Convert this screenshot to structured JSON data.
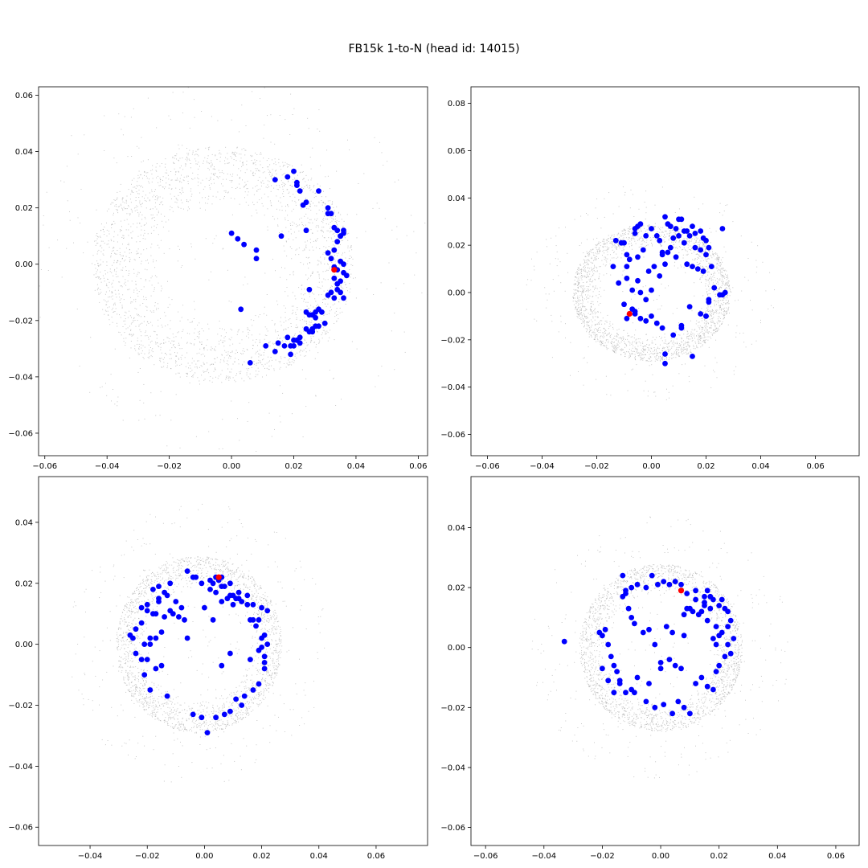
{
  "figure": {
    "title": "FB15k 1-to-N (head id: 14015)"
  },
  "colors": {
    "background_points": "#9a9a9a",
    "tail_points": "#0000ff",
    "head_point": "#ff0000"
  },
  "chart_data": [
    {
      "type": "scatter",
      "title": "",
      "xlabel": "",
      "ylabel": "",
      "xlim": [
        -0.062,
        0.063
      ],
      "ylim": [
        -0.068,
        0.063
      ],
      "xticks": [
        -0.06,
        -0.04,
        -0.02,
        0.0,
        0.02,
        0.04,
        0.06
      ],
      "yticks": [
        -0.06,
        -0.04,
        -0.02,
        0.0,
        0.02,
        0.04,
        0.06
      ],
      "xtick_labels": [
        "−0.06",
        "−0.04",
        "−0.02",
        "0.00",
        "0.02",
        "0.04",
        "0.06"
      ],
      "ytick_labels": [
        "−0.06",
        "−0.04",
        "−0.02",
        "0.00",
        "0.02",
        "0.04",
        "0.06"
      ],
      "grid": false,
      "background_cloud": {
        "shape": "ring",
        "center": [
          -0.003,
          0.0
        ],
        "inner_radius": 0.02,
        "outer_radius": 0.042,
        "count": 2600
      },
      "head": {
        "x": 0.033,
        "y": -0.002
      },
      "series": [
        {
          "x": [
            0.0,
            0.002,
            0.004,
            0.008,
            0.014,
            0.016,
            0.018,
            0.02,
            0.021,
            0.022,
            0.021,
            0.024,
            0.023,
            0.024,
            0.028,
            0.031,
            0.031,
            0.032,
            0.033,
            0.034,
            0.035,
            0.036,
            0.034,
            0.033,
            0.036,
            0.035,
            0.031,
            0.032,
            0.035,
            0.036,
            0.033,
            0.034,
            0.036,
            0.037,
            0.033,
            0.034,
            0.035,
            0.034,
            0.032,
            0.035,
            0.036,
            0.033,
            0.031,
            0.029,
            0.026,
            0.024,
            0.025,
            0.027,
            0.028,
            0.027,
            0.03,
            0.028,
            0.026,
            0.027,
            0.026,
            0.025,
            0.024,
            0.022,
            0.021,
            0.02,
            0.02,
            0.017,
            0.019,
            0.018,
            0.015,
            0.014,
            0.022,
            0.019,
            0.011,
            0.006,
            0.025,
            0.003,
            0.008
          ],
          "y": [
            0.011,
            0.009,
            0.007,
            0.002,
            0.03,
            0.01,
            0.031,
            0.033,
            0.028,
            0.026,
            0.029,
            0.022,
            0.021,
            0.012,
            0.026,
            0.02,
            0.018,
            0.018,
            0.013,
            0.012,
            0.01,
            0.011,
            0.008,
            0.005,
            0.012,
            0.01,
            0.004,
            0.002,
            0.001,
            0.0,
            -0.001,
            -0.002,
            -0.003,
            -0.004,
            -0.005,
            -0.007,
            -0.006,
            -0.009,
            -0.01,
            -0.01,
            -0.012,
            -0.012,
            -0.011,
            -0.017,
            -0.018,
            -0.017,
            -0.018,
            -0.017,
            -0.016,
            -0.019,
            -0.021,
            -0.022,
            -0.023,
            -0.022,
            -0.024,
            -0.024,
            -0.023,
            -0.026,
            -0.027,
            -0.027,
            -0.029,
            -0.029,
            -0.029,
            -0.026,
            -0.028,
            -0.031,
            -0.028,
            -0.032,
            -0.029,
            -0.035,
            -0.009,
            -0.016,
            0.005
          ]
        }
      ]
    },
    {
      "type": "scatter",
      "title": "",
      "xlabel": "",
      "ylabel": "",
      "xlim": [
        -0.066,
        0.076
      ],
      "ylim": [
        -0.069,
        0.087
      ],
      "xticks": [
        -0.06,
        -0.04,
        -0.02,
        0.0,
        0.02,
        0.04,
        0.06
      ],
      "yticks": [
        -0.06,
        -0.04,
        -0.02,
        0.0,
        0.02,
        0.04,
        0.06,
        0.08
      ],
      "xtick_labels": [
        "−0.06",
        "−0.04",
        "−0.02",
        "0.00",
        "0.02",
        "0.04",
        "0.06"
      ],
      "ytick_labels": [
        "−0.06",
        "−0.04",
        "−0.02",
        "0.00",
        "0.02",
        "0.04",
        "0.06",
        "0.08"
      ],
      "grid": false,
      "background_cloud": {
        "shape": "ring",
        "center": [
          0.0,
          0.0
        ],
        "inner_radius": 0.018,
        "outer_radius": 0.029,
        "count": 2400
      },
      "head": {
        "x": -0.008,
        "y": -0.009
      },
      "series": [
        {
          "x": [
            -0.013,
            -0.011,
            -0.01,
            -0.009,
            -0.006,
            -0.006,
            -0.005,
            -0.004,
            -0.002,
            0.0,
            0.003,
            0.005,
            0.006,
            0.007,
            0.009,
            0.01,
            0.011,
            0.012,
            0.013,
            0.015,
            0.016,
            0.018,
            0.019,
            0.02,
            0.021,
            0.026,
            -0.009,
            -0.008,
            -0.005,
            -0.003,
            -0.001,
            0.001,
            0.002,
            0.004,
            0.006,
            0.008,
            0.01,
            0.012,
            0.014,
            0.016,
            0.018,
            0.02,
            0.022,
            -0.014,
            -0.012,
            -0.009,
            -0.007,
            -0.005,
            -0.004,
            -0.002,
            0.0,
            0.003,
            0.004,
            0.005,
            0.007,
            0.009,
            0.013,
            0.015,
            0.017,
            0.019,
            0.021,
            0.023,
            0.025,
            -0.007,
            -0.006,
            -0.004,
            -0.002,
            0.0,
            0.005,
            0.008,
            0.011,
            0.014,
            0.021,
            0.02,
            0.026,
            0.027,
            0.018,
            0.02,
            -0.009,
            -0.006,
            0.002,
            0.004,
            0.005,
            0.015,
            0.011,
            -0.01
          ],
          "y": [
            0.022,
            0.021,
            0.021,
            0.016,
            0.025,
            0.027,
            0.028,
            0.029,
            0.024,
            0.027,
            0.022,
            0.032,
            0.029,
            0.028,
            0.027,
            0.031,
            0.031,
            0.026,
            0.026,
            0.028,
            0.025,
            0.026,
            0.023,
            0.022,
            0.019,
            0.027,
            0.011,
            0.014,
            0.015,
            0.018,
            0.009,
            0.011,
            0.024,
            0.017,
            0.017,
            0.023,
            0.024,
            0.021,
            0.024,
            0.019,
            0.018,
            0.016,
            0.011,
            0.011,
            0.004,
            0.006,
            0.001,
            0.005,
            0.0,
            -0.003,
            0.001,
            0.007,
            0.016,
            0.012,
            0.019,
            0.015,
            0.012,
            0.011,
            0.01,
            0.009,
            -0.004,
            0.002,
            -0.001,
            -0.007,
            -0.008,
            -0.011,
            -0.012,
            -0.01,
            -0.026,
            -0.018,
            -0.015,
            -0.006,
            -0.003,
            -0.01,
            -0.001,
            0.0,
            -0.009,
            -0.01,
            -0.011,
            -0.009,
            -0.013,
            -0.015,
            -0.03,
            -0.027,
            -0.014,
            -0.005
          ]
        }
      ]
    },
    {
      "type": "scatter",
      "title": "",
      "xlabel": "",
      "ylabel": "",
      "xlim": [
        -0.058,
        0.078
      ],
      "ylim": [
        -0.066,
        0.055
      ],
      "xticks": [
        -0.04,
        -0.02,
        0.0,
        0.02,
        0.04,
        0.06
      ],
      "yticks": [
        -0.06,
        -0.04,
        -0.02,
        0.0,
        0.02,
        0.04
      ],
      "xtick_labels": [
        "−0.04",
        "−0.02",
        "0.00",
        "0.02",
        "0.04",
        "0.06"
      ],
      "ytick_labels": [
        "−0.06",
        "−0.04",
        "−0.02",
        "0.00",
        "0.02",
        "0.04"
      ],
      "grid": false,
      "background_cloud": {
        "shape": "ring",
        "center": [
          -0.002,
          0.0
        ],
        "inner_radius": 0.018,
        "outer_radius": 0.029,
        "count": 2300
      },
      "head": {
        "x": 0.005,
        "y": 0.022
      },
      "series": [
        {
          "x": [
            -0.006,
            -0.003,
            -0.001,
            0.002,
            0.004,
            0.006,
            0.009,
            0.012,
            0.015,
            0.017,
            0.02,
            0.022,
            -0.014,
            -0.016,
            -0.018,
            -0.02,
            -0.022,
            -0.024,
            -0.025,
            -0.026,
            -0.024,
            -0.022,
            -0.021,
            -0.019,
            -0.017,
            -0.015,
            -0.013,
            -0.011,
            -0.009,
            -0.007,
            -0.004,
            -0.001,
            0.001,
            0.004,
            0.007,
            0.009,
            0.011,
            0.014,
            0.017,
            0.019,
            0.021,
            0.022,
            0.021,
            0.02,
            0.018,
            0.016,
            0.012,
            0.01,
            -0.016,
            -0.018,
            -0.02,
            -0.012,
            -0.01,
            -0.008,
            -0.006,
            -0.004,
            0.002,
            0.004,
            0.006,
            0.008,
            0.01,
            0.013,
            0.015,
            0.017,
            0.019,
            0.02,
            -0.02,
            -0.019,
            -0.017,
            -0.015,
            -0.014,
            -0.012,
            0.0,
            0.003,
            0.006,
            0.009,
            0.013,
            0.016,
            -0.022,
            -0.021,
            -0.019,
            -0.017,
            -0.016,
            -0.013,
            0.011,
            0.009,
            0.007,
            0.005,
            0.006,
            0.003,
            0.019,
            0.021,
            0.021
          ],
          "y": [
            0.024,
            0.022,
            0.02,
            0.021,
            0.022,
            0.019,
            0.02,
            0.017,
            0.016,
            0.013,
            0.012,
            0.011,
            0.017,
            0.014,
            0.01,
            0.013,
            0.012,
            0.005,
            0.002,
            0.003,
            -0.003,
            -0.005,
            -0.01,
            -0.015,
            -0.008,
            -0.007,
            -0.017,
            0.01,
            0.009,
            0.008,
            -0.023,
            -0.024,
            -0.029,
            -0.024,
            -0.023,
            -0.022,
            -0.018,
            -0.017,
            -0.015,
            -0.013,
            -0.006,
            0.0,
            0.003,
            -0.001,
            0.006,
            0.008,
            0.015,
            0.013,
            0.019,
            0.018,
            0.011,
            0.02,
            0.014,
            0.012,
            0.002,
            0.022,
            0.018,
            0.017,
            0.014,
            0.015,
            0.016,
            0.014,
            0.013,
            0.008,
            0.008,
            0.002,
            -0.005,
            0.0,
            0.002,
            0.004,
            0.009,
            0.011,
            0.012,
            0.008,
            -0.007,
            -0.003,
            -0.02,
            -0.005,
            0.007,
            0.0,
            0.002,
            0.01,
            0.015,
            0.016,
            0.015,
            0.016,
            0.019,
            0.021,
            0.022,
            0.02,
            -0.002,
            -0.004,
            -0.008
          ]
        }
      ]
    },
    {
      "type": "scatter",
      "title": "",
      "xlabel": "",
      "ylabel": "",
      "xlim": [
        -0.065,
        0.068
      ],
      "ylim": [
        -0.066,
        0.057
      ],
      "xticks": [
        -0.06,
        -0.04,
        -0.02,
        0.0,
        0.02,
        0.04,
        0.06
      ],
      "yticks": [
        -0.06,
        -0.04,
        -0.02,
        0.0,
        0.02,
        0.04
      ],
      "xtick_labels": [
        "−0.06",
        "−0.04",
        "−0.02",
        "0.00",
        "0.02",
        "0.04",
        "0.06"
      ],
      "ytick_labels": [
        "−0.06",
        "−0.04",
        "−0.02",
        "0.00",
        "0.02",
        "0.04"
      ],
      "grid": false,
      "background_cloud": {
        "shape": "ring",
        "center": [
          0.0,
          0.0
        ],
        "inner_radius": 0.018,
        "outer_radius": 0.028,
        "count": 2300
      },
      "head": {
        "x": 0.007,
        "y": 0.019
      },
      "series": [
        {
          "x": [
            -0.013,
            -0.012,
            -0.01,
            -0.008,
            -0.005,
            -0.003,
            -0.001,
            0.001,
            0.003,
            0.005,
            0.007,
            0.009,
            0.012,
            0.015,
            0.016,
            0.018,
            0.02,
            0.022,
            0.023,
            -0.021,
            -0.02,
            -0.019,
            -0.018,
            -0.017,
            -0.016,
            -0.015,
            -0.014,
            -0.012,
            -0.01,
            -0.008,
            -0.005,
            -0.002,
            0.001,
            0.004,
            0.006,
            0.008,
            0.01,
            0.012,
            0.014,
            0.016,
            0.018,
            0.019,
            0.02,
            0.022,
            0.024,
            0.025,
            0.024,
            0.023,
            0.021,
            0.02,
            0.019,
            0.018,
            0.017,
            0.015,
            0.016,
            0.014,
            0.012,
            0.01,
            0.008,
            -0.012,
            -0.013,
            -0.011,
            -0.01,
            -0.009,
            -0.006,
            -0.004,
            -0.002,
            0.0,
            0.003,
            0.005,
            0.007,
            0.009,
            0.011,
            0.013,
            0.015,
            0.017,
            0.019,
            0.021,
            0.023,
            -0.033,
            -0.02,
            -0.018,
            -0.016,
            -0.014,
            0.002,
            0.004,
            0.008,
            -0.009,
            -0.004,
            0.0
          ],
          "y": [
            0.024,
            0.019,
            0.02,
            0.021,
            0.02,
            0.024,
            0.021,
            0.022,
            0.021,
            0.022,
            0.021,
            0.018,
            0.019,
            0.017,
            0.019,
            0.016,
            0.014,
            0.013,
            0.012,
            0.005,
            0.004,
            0.006,
            0.001,
            -0.003,
            -0.006,
            -0.008,
            -0.011,
            -0.015,
            -0.014,
            -0.01,
            -0.018,
            -0.02,
            -0.019,
            -0.022,
            -0.018,
            -0.02,
            -0.022,
            -0.012,
            -0.01,
            -0.013,
            -0.014,
            -0.008,
            -0.006,
            -0.003,
            -0.002,
            0.003,
            0.009,
            0.007,
            0.005,
            0.004,
            0.001,
            0.003,
            0.013,
            0.014,
            0.009,
            0.012,
            0.016,
            0.013,
            0.011,
            0.018,
            0.017,
            0.013,
            0.01,
            0.008,
            0.005,
            0.006,
            0.001,
            -0.007,
            -0.004,
            -0.006,
            -0.007,
            0.013,
            0.012,
            0.011,
            0.015,
            0.017,
            0.007,
            0.016,
            0.001,
            0.002,
            -0.007,
            -0.011,
            -0.015,
            -0.012,
            0.007,
            0.005,
            0.004,
            -0.015,
            -0.012,
            -0.005
          ]
        }
      ]
    }
  ]
}
